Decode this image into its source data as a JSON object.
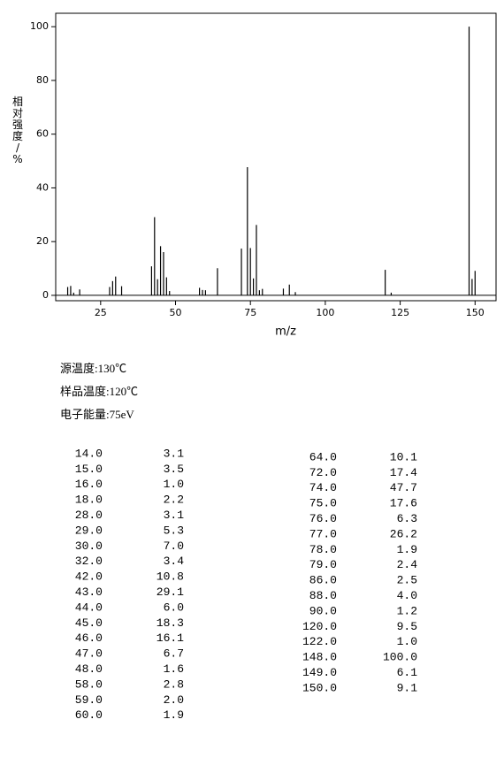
{
  "chart_data": {
    "type": "bar",
    "x_label": "m/z",
    "y_label": "相对强度/%",
    "x": [
      14,
      15,
      16,
      18,
      28,
      29,
      30,
      32,
      42,
      43,
      44,
      45,
      46,
      47,
      48,
      58,
      59,
      60,
      64,
      72,
      74,
      75,
      76,
      77,
      78,
      79,
      86,
      88,
      90,
      120,
      122,
      148,
      149,
      150
    ],
    "values": [
      3.1,
      3.5,
      1.0,
      2.2,
      3.1,
      5.3,
      7.0,
      3.4,
      10.8,
      29.1,
      6.0,
      18.3,
      16.1,
      6.7,
      1.6,
      2.8,
      2.0,
      1.9,
      10.1,
      17.4,
      47.7,
      17.6,
      6.3,
      26.2,
      1.9,
      2.4,
      2.5,
      4.0,
      1.2,
      9.5,
      1.0,
      100.0,
      6.1,
      9.1
    ],
    "color": "#000000",
    "xlim": [
      10,
      157
    ],
    "xticks": [
      25,
      50,
      75,
      100,
      125,
      150
    ],
    "ylim": [
      -2,
      105
    ],
    "yticks": [
      0,
      20,
      40,
      60,
      80,
      100
    ]
  },
  "conditions": [
    "源温度:130℃",
    "样品温度:120℃",
    "电子能量:75eV"
  ],
  "table": {
    "left": [
      [
        "14.0",
        "3.1"
      ],
      [
        "15.0",
        "3.5"
      ],
      [
        "16.0",
        "1.0"
      ],
      [
        "18.0",
        "2.2"
      ],
      [
        "28.0",
        "3.1"
      ],
      [
        "29.0",
        "5.3"
      ],
      [
        "30.0",
        "7.0"
      ],
      [
        "32.0",
        "3.4"
      ],
      [
        "42.0",
        "10.8"
      ],
      [
        "43.0",
        "29.1"
      ],
      [
        "44.0",
        "6.0"
      ],
      [
        "45.0",
        "18.3"
      ],
      [
        "46.0",
        "16.1"
      ],
      [
        "47.0",
        "6.7"
      ],
      [
        "48.0",
        "1.6"
      ],
      [
        "58.0",
        "2.8"
      ],
      [
        "59.0",
        "2.0"
      ],
      [
        "60.0",
        "1.9"
      ]
    ],
    "right": [
      [
        "64.0",
        "10.1"
      ],
      [
        "72.0",
        "17.4"
      ],
      [
        "74.0",
        "47.7"
      ],
      [
        "75.0",
        "17.6"
      ],
      [
        "76.0",
        "6.3"
      ],
      [
        "77.0",
        "26.2"
      ],
      [
        "78.0",
        "1.9"
      ],
      [
        "79.0",
        "2.4"
      ],
      [
        "86.0",
        "2.5"
      ],
      [
        "88.0",
        "4.0"
      ],
      [
        "90.0",
        "1.2"
      ],
      [
        "120.0",
        "9.5"
      ],
      [
        "122.0",
        "1.0"
      ],
      [
        "148.0",
        "100.0"
      ],
      [
        "149.0",
        "6.1"
      ],
      [
        "150.0",
        "9.1"
      ]
    ]
  }
}
